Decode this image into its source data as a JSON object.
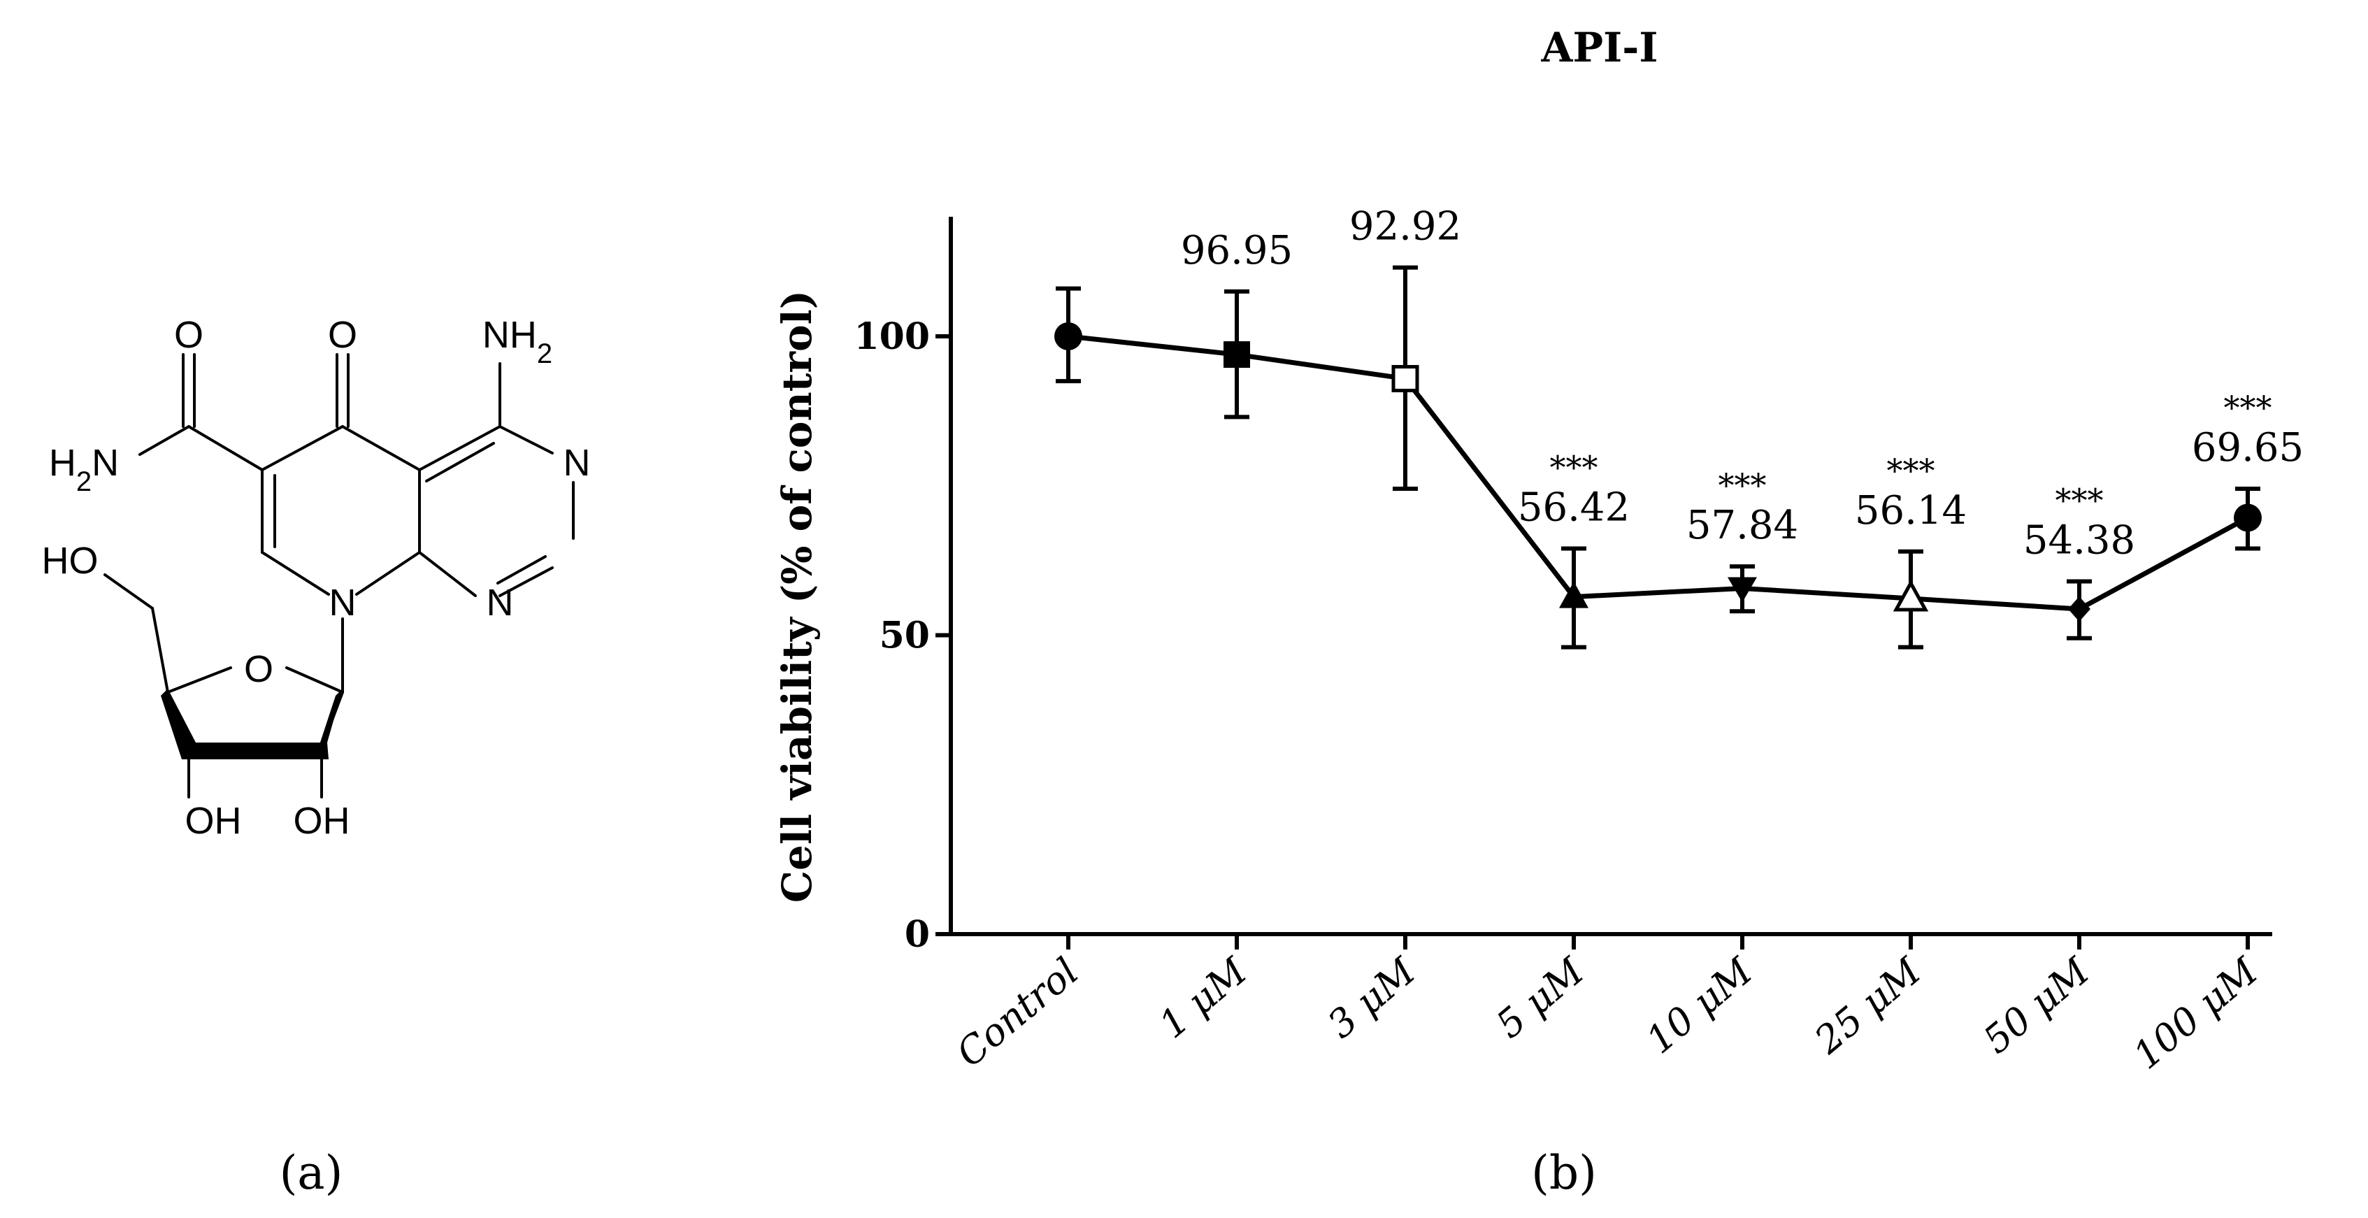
{
  "panel_labels": {
    "a": "(a)",
    "b": "(b)"
  },
  "molecule": {
    "atoms": {
      "o_amide": "O",
      "o_ketone": "O",
      "nh2_top": "NH2",
      "h2n_left": "H2N",
      "n_right": "N",
      "n_lower": "N",
      "n_ring": "N",
      "ho_left": "HO",
      "o_sugar": "O",
      "oh_1": "OH",
      "oh_2": "OH"
    }
  },
  "chart_data": {
    "type": "line",
    "title": "API-I",
    "xlabel": "",
    "ylabel": "Cell viability (% of control)",
    "ylim": [
      0,
      120
    ],
    "yticks": [
      0,
      50,
      100
    ],
    "ytick_labels": [
      "0",
      "50",
      "100"
    ],
    "categories": [
      "Control",
      "1 μM",
      "3 μM",
      "5 μM",
      "10 μM",
      "25 μM",
      "50 μM",
      "100 μM"
    ],
    "values": [
      100,
      96.95,
      92.92,
      56.42,
      57.84,
      56.14,
      54.38,
      69.65
    ],
    "error_upper": [
      108,
      107.5,
      111.5,
      64.5,
      61.5,
      64,
      59,
      74.5
    ],
    "error_lower": [
      92.5,
      86.5,
      74.5,
      48,
      54,
      48,
      49.5,
      64.5
    ],
    "markers": [
      "circle",
      "square",
      "open-square",
      "triangle",
      "triangle-down",
      "open-triangle",
      "diamond",
      "circle"
    ],
    "data_labels": [
      "",
      "96.95",
      "92.92",
      "56.42",
      "57.84",
      "56.14",
      "54.38",
      "69.65"
    ],
    "significance": [
      "",
      "",
      "",
      "***",
      "***",
      "***",
      "***",
      "***"
    ],
    "color": "#000000"
  }
}
